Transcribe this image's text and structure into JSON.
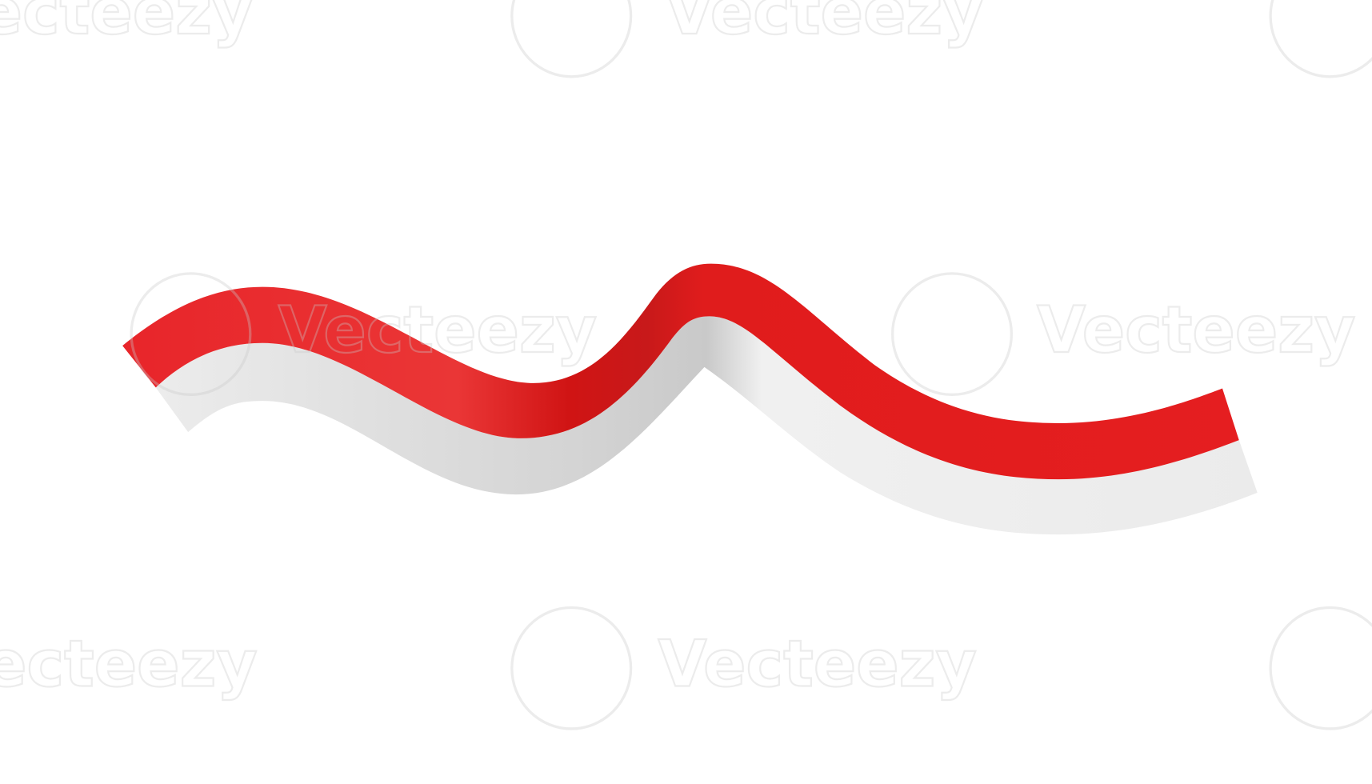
{
  "watermark": {
    "text": "Vecteezy"
  }
}
